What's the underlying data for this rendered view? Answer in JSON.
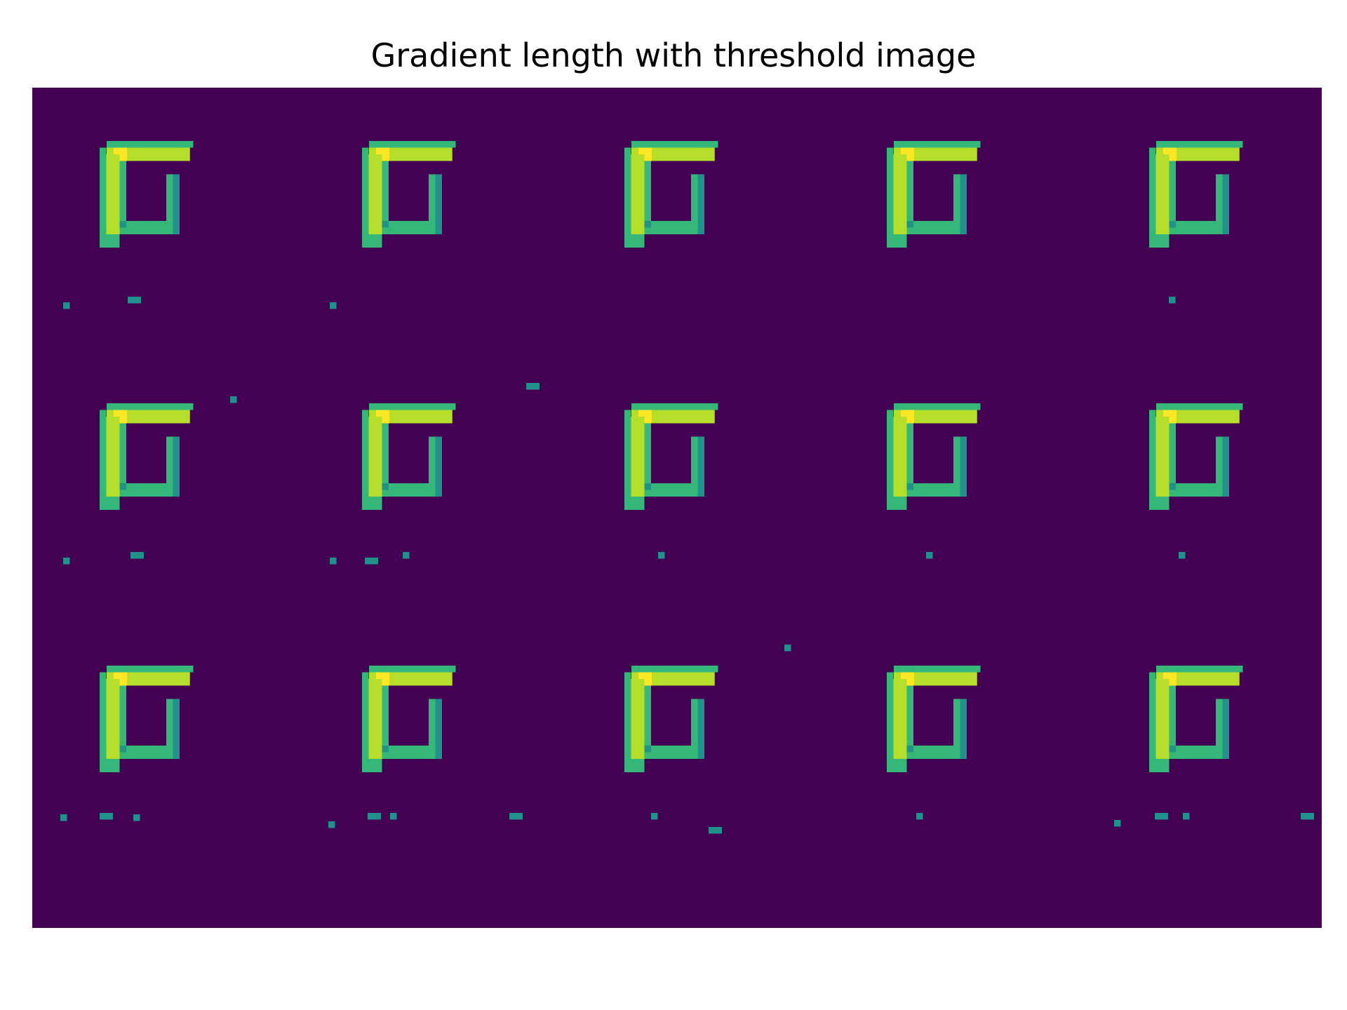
{
  "chart_data": {
    "type": "heatmap",
    "title": "Gradient length with threshold image",
    "axes_visible": false,
    "colormap": "viridis",
    "colors": {
      "background": "#440154",
      "low": "#21918c",
      "mid": "#35b779",
      "high": "#b5de2b",
      "peak": "#fde725"
    },
    "grid": {
      "rows": 3,
      "columns": 5
    },
    "cells": [
      {
        "row": 1,
        "col": 1,
        "glyph": "nested-square-corner",
        "noise_specks": 2
      },
      {
        "row": 1,
        "col": 2,
        "glyph": "nested-square-corner",
        "noise_specks": 2
      },
      {
        "row": 1,
        "col": 3,
        "glyph": "nested-square-corner",
        "noise_specks": 0
      },
      {
        "row": 1,
        "col": 4,
        "glyph": "nested-square-corner",
        "noise_specks": 0
      },
      {
        "row": 1,
        "col": 5,
        "glyph": "nested-square-corner",
        "noise_specks": 1
      },
      {
        "row": 2,
        "col": 1,
        "glyph": "nested-square-corner",
        "noise_specks": 3
      },
      {
        "row": 2,
        "col": 2,
        "glyph": "nested-square-corner",
        "noise_specks": 3
      },
      {
        "row": 2,
        "col": 3,
        "glyph": "nested-square-corner",
        "noise_specks": 1
      },
      {
        "row": 2,
        "col": 4,
        "glyph": "nested-square-corner",
        "noise_specks": 1
      },
      {
        "row": 2,
        "col": 5,
        "glyph": "nested-square-corner",
        "noise_specks": 1
      },
      {
        "row": 3,
        "col": 1,
        "glyph": "nested-square-corner",
        "noise_specks": 3
      },
      {
        "row": 3,
        "col": 2,
        "glyph": "nested-square-corner",
        "noise_specks": 4
      },
      {
        "row": 3,
        "col": 3,
        "glyph": "nested-square-corner",
        "noise_specks": 3
      },
      {
        "row": 3,
        "col": 4,
        "glyph": "nested-square-corner",
        "noise_specks": 1
      },
      {
        "row": 3,
        "col": 5,
        "glyph": "nested-square-corner",
        "noise_specks": 4
      }
    ]
  }
}
